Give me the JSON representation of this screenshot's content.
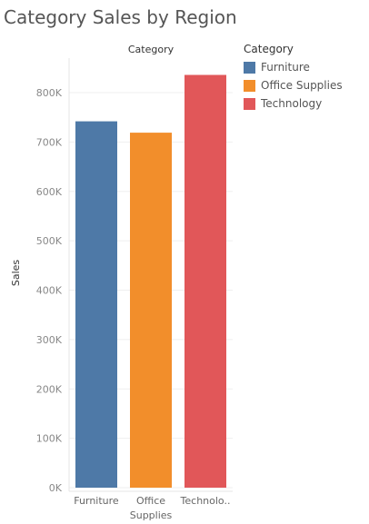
{
  "chart_data": {
    "type": "bar",
    "title": "Category Sales by Region",
    "header": "Category",
    "ylabel": "Sales",
    "categories": [
      "Furniture",
      "Office Supplies",
      "Technology"
    ],
    "category_tick_labels": [
      [
        "Furniture"
      ],
      [
        "Office",
        "Supplies"
      ],
      [
        "Technolo.."
      ]
    ],
    "values": [
      742000,
      719000,
      836000
    ],
    "colors": [
      "#4e79a7",
      "#f28e2b",
      "#e15759"
    ],
    "ylim": [
      0,
      870000
    ],
    "yticks": [
      0,
      100000,
      200000,
      300000,
      400000,
      500000,
      600000,
      700000,
      800000
    ],
    "ytick_labels": [
      "0K",
      "100K",
      "200K",
      "300K",
      "400K",
      "500K",
      "600K",
      "700K",
      "800K"
    ],
    "grid": true,
    "legend": {
      "title": "Category",
      "position": "right",
      "items": [
        {
          "label": "Furniture",
          "color": "#4e79a7"
        },
        {
          "label": "Office Supplies",
          "color": "#f28e2b"
        },
        {
          "label": "Technology",
          "color": "#e15759"
        }
      ]
    }
  }
}
